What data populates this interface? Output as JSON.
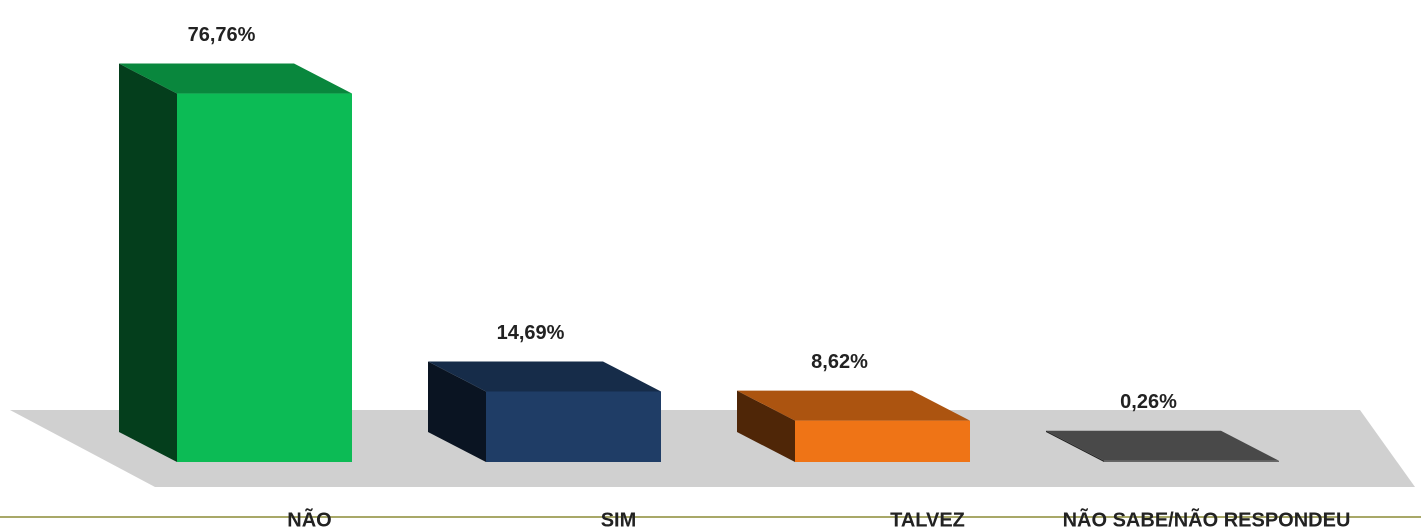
{
  "chart_data": {
    "type": "bar3d",
    "categories": [
      "NÃO",
      "SIM",
      "TALVEZ",
      "NÃO SABE/NÃO RESPONDEU"
    ],
    "values": [
      76.76,
      14.69,
      8.62,
      0.26
    ],
    "value_labels": [
      "76,76%",
      "14,69%",
      "8,62%",
      "0,26%"
    ],
    "colors": [
      "#0cbb55",
      "#1f3d66",
      "#ef7416",
      "#666666"
    ]
  }
}
